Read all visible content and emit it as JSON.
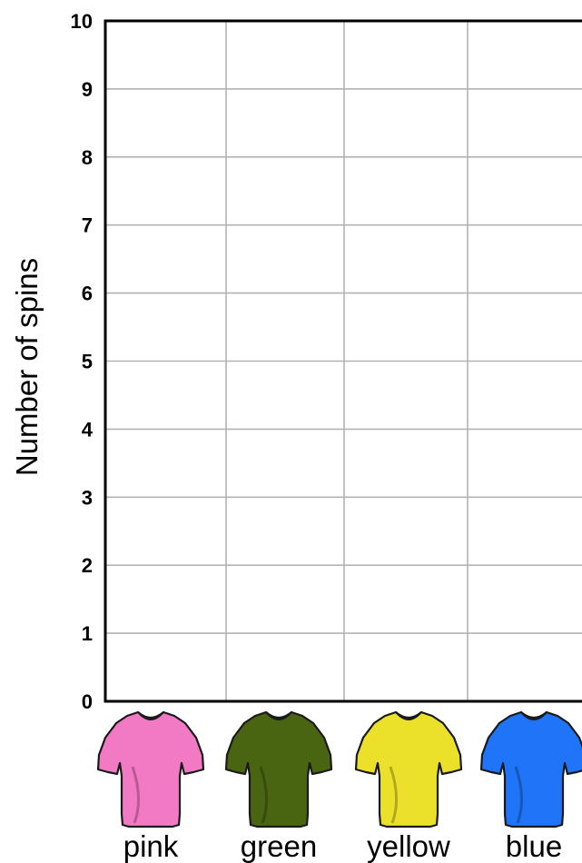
{
  "chart_data": {
    "type": "bar",
    "title": "",
    "xlabel": "",
    "ylabel": "Number of spins",
    "categories": [
      "pink",
      "green",
      "yellow",
      "blue"
    ],
    "values": [
      null,
      null,
      null,
      null
    ],
    "ylim": [
      0,
      10
    ],
    "yticks": [
      "0",
      "1",
      "2",
      "3",
      "4",
      "5",
      "6",
      "7",
      "8",
      "9",
      "10"
    ],
    "grid": true,
    "category_icons": [
      "t-shirt-icon",
      "t-shirt-icon",
      "t-shirt-icon",
      "t-shirt-icon"
    ],
    "category_colors": [
      "#f27ac4",
      "#4a6512",
      "#ece12a",
      "#1f74f7"
    ],
    "axis_color": "#000000",
    "grid_color": "#b3b3b3"
  }
}
